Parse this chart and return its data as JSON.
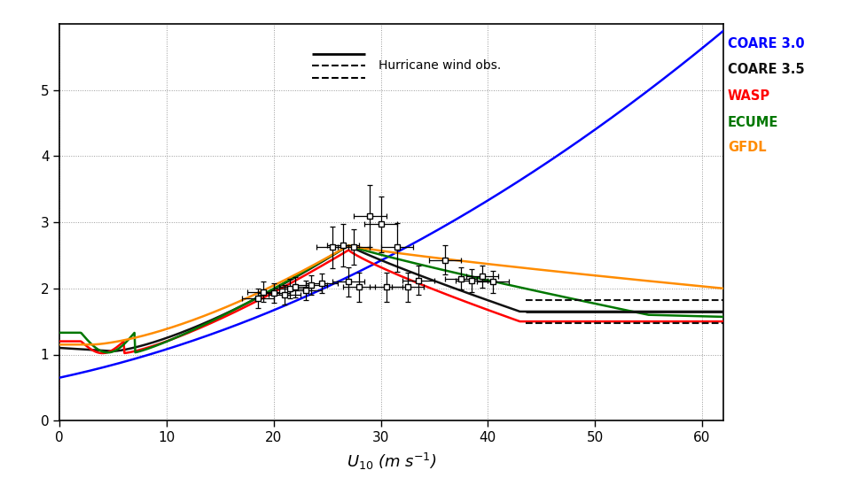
{
  "xlabel": "$U_{10}$ (m s$^{-1}$)",
  "xlim": [
    0,
    62
  ],
  "ylim": [
    0,
    6
  ],
  "yticks": [
    0,
    1,
    2,
    3,
    4,
    5
  ],
  "xticks": [
    0,
    10,
    20,
    30,
    40,
    50,
    60
  ],
  "background_color": "#ffffff",
  "legend_labels": [
    "COARE 3.0",
    "COARE 3.5",
    "WASP",
    "ECUME",
    "GFDL"
  ],
  "legend_colors": [
    "#0000ff",
    "#111111",
    "#ff0000",
    "#007700",
    "#ff8c00"
  ],
  "hurricane_legend": "Hurricane wind obs.",
  "hurricane_solid": 1.65,
  "hurricane_dashed_upper": 1.82,
  "hurricane_dashed_lower": 1.47,
  "hurricane_x_start": 43.5,
  "hurricane_x_end": 62,
  "obs_data": {
    "x": [
      18.5,
      19.0,
      20.0,
      21.0,
      21.5,
      22.0,
      23.0,
      23.5,
      24.5,
      25.5,
      26.5,
      27.0,
      27.5,
      28.0,
      29.0,
      30.0,
      30.5,
      31.5,
      32.5,
      33.5,
      36.0,
      37.5,
      38.5,
      39.5,
      40.5
    ],
    "y": [
      1.85,
      1.95,
      1.93,
      1.9,
      2.0,
      2.02,
      1.97,
      2.05,
      2.08,
      2.62,
      2.65,
      2.1,
      2.63,
      2.02,
      3.1,
      2.97,
      2.02,
      2.62,
      2.02,
      2.12,
      2.43,
      2.15,
      2.12,
      2.18,
      2.1
    ],
    "xerr": [
      1.5,
      1.5,
      1.5,
      1.5,
      1.5,
      1.5,
      1.5,
      1.5,
      1.5,
      1.5,
      1.5,
      1.5,
      1.5,
      1.5,
      1.5,
      1.5,
      1.5,
      1.5,
      1.5,
      1.5,
      1.5,
      1.5,
      1.5,
      1.5,
      1.5
    ],
    "yerr": [
      0.15,
      0.15,
      0.15,
      0.15,
      0.15,
      0.15,
      0.15,
      0.15,
      0.15,
      0.32,
      0.32,
      0.22,
      0.27,
      0.22,
      0.47,
      0.42,
      0.22,
      0.37,
      0.22,
      0.22,
      0.22,
      0.17,
      0.17,
      0.17,
      0.17
    ]
  }
}
